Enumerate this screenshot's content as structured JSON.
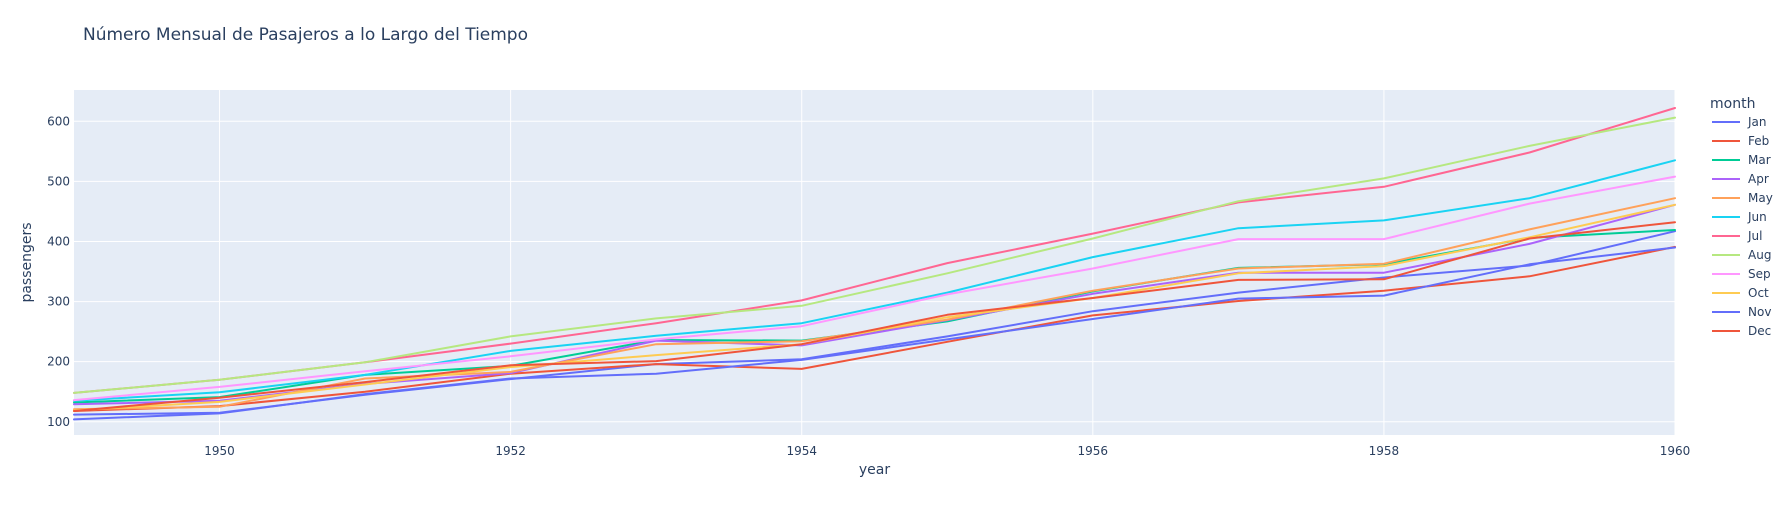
{
  "chart_data": {
    "type": "line",
    "title": "Número Mensual de Pasajeros a lo Largo del Tiempo",
    "xlabel": "year",
    "ylabel": "passengers",
    "legend_title": "month",
    "legend_position": "right",
    "grid": true,
    "xlim": [
      1949,
      1960
    ],
    "ylim": [
      78,
      652
    ],
    "x_ticks": [
      1950,
      1952,
      1954,
      1956,
      1958,
      1960
    ],
    "y_ticks": [
      100,
      200,
      300,
      400,
      500,
      600
    ],
    "x": [
      1949,
      1950,
      1951,
      1952,
      1953,
      1954,
      1955,
      1956,
      1957,
      1958,
      1959,
      1960
    ],
    "series": [
      {
        "name": "Jan",
        "color": "#636efa",
        "values": [
          112,
          115,
          145,
          171,
          196,
          204,
          242,
          284,
          315,
          340,
          360,
          417
        ]
      },
      {
        "name": "Feb",
        "color": "#EF553B",
        "values": [
          118,
          126,
          150,
          180,
          196,
          188,
          233,
          277,
          301,
          318,
          342,
          391
        ]
      },
      {
        "name": "Mar",
        "color": "#00cc96",
        "values": [
          132,
          141,
          178,
          193,
          236,
          235,
          267,
          317,
          356,
          362,
          406,
          419
        ]
      },
      {
        "name": "Apr",
        "color": "#ab63fa",
        "values": [
          129,
          135,
          163,
          181,
          235,
          227,
          269,
          313,
          348,
          348,
          396,
          461
        ]
      },
      {
        "name": "May",
        "color": "#FFA15A",
        "values": [
          121,
          125,
          172,
          183,
          229,
          234,
          270,
          318,
          355,
          363,
          420,
          472
        ]
      },
      {
        "name": "Jun",
        "color": "#19d3f3",
        "values": [
          135,
          149,
          178,
          218,
          243,
          264,
          315,
          374,
          422,
          435,
          472,
          535
        ]
      },
      {
        "name": "Jul",
        "color": "#FF6692",
        "values": [
          148,
          170,
          199,
          230,
          264,
          302,
          364,
          413,
          465,
          491,
          548,
          622
        ]
      },
      {
        "name": "Aug",
        "color": "#B6E880",
        "values": [
          148,
          170,
          199,
          242,
          272,
          293,
          347,
          405,
          467,
          505,
          559,
          606
        ]
      },
      {
        "name": "Sep",
        "color": "#FF97FF",
        "values": [
          136,
          158,
          184,
          209,
          237,
          259,
          312,
          355,
          404,
          404,
          463,
          508
        ]
      },
      {
        "name": "Oct",
        "color": "#FECB52",
        "values": [
          119,
          133,
          162,
          191,
          211,
          229,
          274,
          306,
          347,
          359,
          407,
          461
        ]
      },
      {
        "name": "Nov",
        "color": "#636efa",
        "values": [
          104,
          114,
          146,
          172,
          180,
          203,
          237,
          271,
          305,
          310,
          362,
          390
        ]
      },
      {
        "name": "Dec",
        "color": "#EF553B",
        "values": [
          118,
          140,
          166,
          194,
          201,
          229,
          278,
          306,
          336,
          337,
          405,
          432
        ]
      }
    ]
  },
  "colors": {
    "plot_bg": "#e5ecf6",
    "grid": "#ffffff",
    "text": "#2a3f5f"
  }
}
